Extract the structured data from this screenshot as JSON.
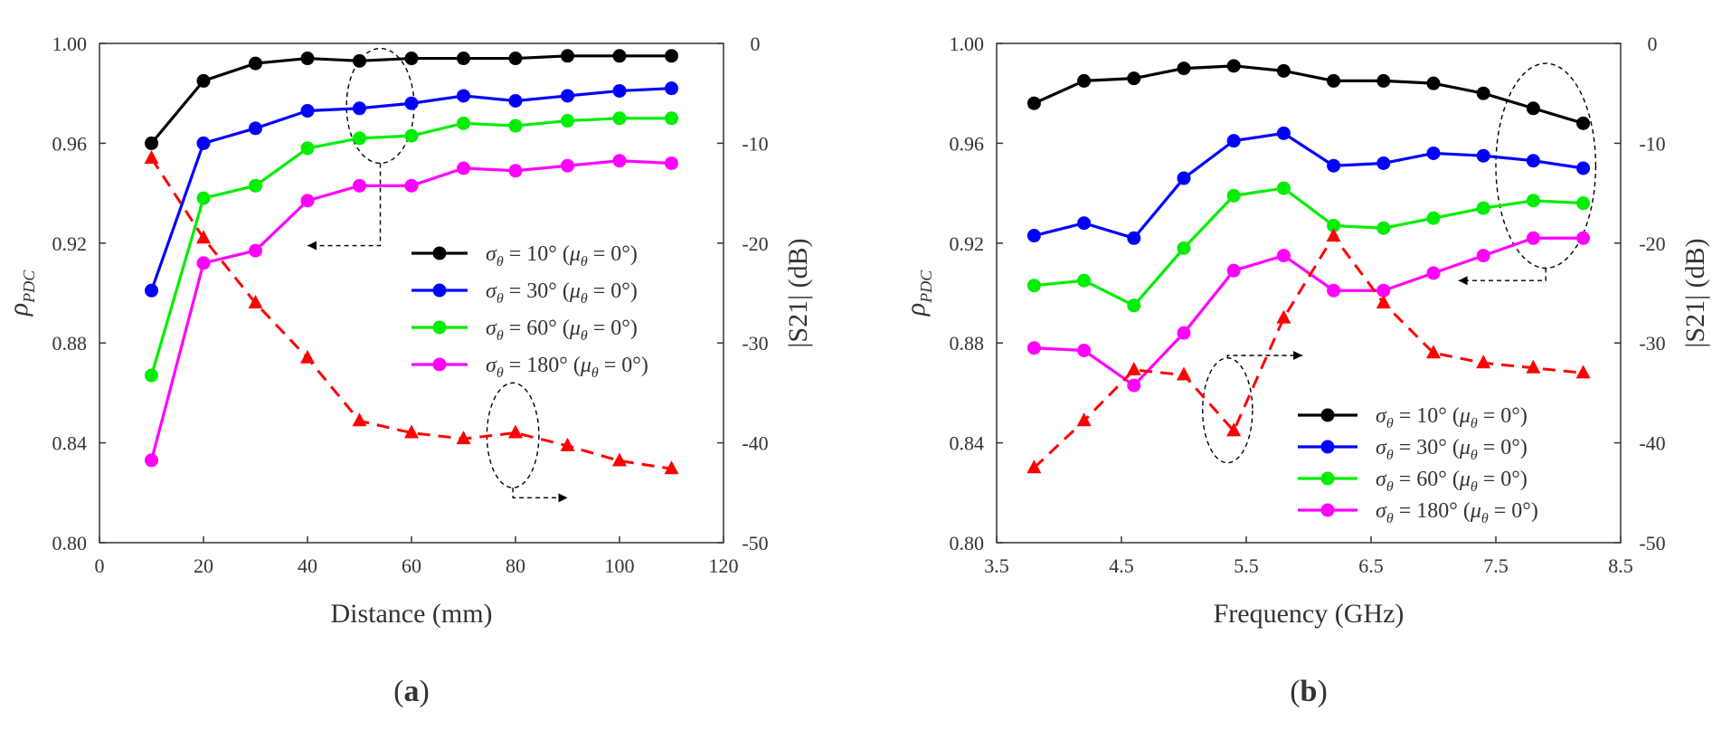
{
  "chart_data": [
    {
      "type": "line",
      "panel_label": "(a)",
      "panel_letter": "a",
      "xlabel": "Distance (mm)",
      "ylabel_left": "ρ",
      "ylabel_left_subscript": "PDC",
      "ylabel_right": "|S21| (dB)",
      "xlim": [
        0,
        120
      ],
      "ylim_left": [
        0.8,
        1.0
      ],
      "ylim_right": [
        -50,
        0
      ],
      "x_ticks": [
        "0",
        "20",
        "40",
        "60",
        "80",
        "100",
        "120"
      ],
      "y_ticks_left": [
        "0.80",
        "0.84",
        "0.88",
        "0.92",
        "0.96",
        "1.00"
      ],
      "y_ticks_right": [
        "-50",
        "-40",
        "-30",
        "-20",
        "-10",
        "0"
      ],
      "x": [
        10,
        20,
        30,
        40,
        50,
        60,
        70,
        80,
        90,
        100,
        110
      ],
      "legend_position": "right",
      "series": [
        {
          "name": "σθ = 10° (μθ = 0°)",
          "color": "#000000",
          "axis": "left",
          "values": [
            0.96,
            0.985,
            0.992,
            0.994,
            0.993,
            0.994,
            0.994,
            0.994,
            0.995,
            0.995,
            0.995
          ]
        },
        {
          "name": "σθ = 30° (μθ = 0°)",
          "color": "#0000ff",
          "axis": "left",
          "values": [
            0.901,
            0.96,
            0.966,
            0.973,
            0.974,
            0.976,
            0.979,
            0.977,
            0.979,
            0.981,
            0.982
          ]
        },
        {
          "name": "σθ = 60° (μθ = 0°)",
          "color": "#00ee00",
          "axis": "left",
          "values": [
            0.867,
            0.938,
            0.943,
            0.958,
            0.962,
            0.963,
            0.968,
            0.967,
            0.969,
            0.97,
            0.97
          ]
        },
        {
          "name": "σθ = 180° (μθ = 0°)",
          "color": "#ff00ff",
          "axis": "left",
          "values": [
            0.833,
            0.912,
            0.917,
            0.937,
            0.943,
            0.943,
            0.95,
            0.949,
            0.951,
            0.953,
            0.952
          ]
        },
        {
          "name": "|S21|",
          "color": "#ff0000",
          "axis": "right",
          "dashed": true,
          "marker": "triangle",
          "values": [
            -11.5,
            -19.5,
            -26,
            -31.5,
            -37.8,
            -39,
            -39.6,
            -39,
            -40.3,
            -41.8,
            -42.6
          ]
        }
      ],
      "legend": [
        {
          "sym": "σ",
          "sub": "θ",
          "rest": " = 10° (",
          "sym2": "μ",
          "sub2": "θ",
          "rest2": " = 0°)",
          "color": "#000000"
        },
        {
          "sym": "σ",
          "sub": "θ",
          "rest": " = 30° (",
          "sym2": "μ",
          "sub2": "θ",
          "rest2": " = 0°)",
          "color": "#0000ff"
        },
        {
          "sym": "σ",
          "sub": "θ",
          "rest": " = 60° (",
          "sym2": "μ",
          "sub2": "θ",
          "rest2": " = 0°)",
          "color": "#00ee00"
        },
        {
          "sym": "σ",
          "sub": "θ",
          "rest": " = 180° (",
          "sym2": "μ",
          "sub2": "θ",
          "rest2": " = 0°)",
          "color": "#ff00ff"
        }
      ],
      "annotations": [
        {
          "type": "ellipse",
          "cx": 54,
          "cy": 0.975,
          "rx": 6.5,
          "ry": 0.023,
          "arrow_to": [
            40,
            0.919
          ]
        },
        {
          "type": "ellipse",
          "cx": 79.5,
          "cy": 0.843,
          "rx": 5,
          "ry": 0.021,
          "arrow_to": [
            90,
            0.818
          ]
        }
      ]
    },
    {
      "type": "line",
      "panel_label": "(b)",
      "panel_letter": "b",
      "xlabel": "Frequency (GHz)",
      "ylabel_left": "ρ",
      "ylabel_left_subscript": "PDC",
      "ylabel_right": "|S21| (dB)",
      "xlim": [
        3.5,
        8.5
      ],
      "ylim_left": [
        0.8,
        1.0
      ],
      "ylim_right": [
        -50,
        0
      ],
      "x_ticks": [
        "3.5",
        "4.5",
        "5.5",
        "6.5",
        "7.5",
        "8.5"
      ],
      "y_ticks_left": [
        "0.80",
        "0.84",
        "0.88",
        "0.92",
        "0.96",
        "1.00"
      ],
      "y_ticks_right": [
        "-50",
        "-40",
        "-30",
        "-20",
        "-10",
        "0"
      ],
      "x": [
        3.8,
        4.2,
        4.6,
        5.0,
        5.4,
        5.8,
        6.2,
        6.6,
        7.0,
        7.4,
        7.8,
        8.2
      ],
      "legend_position": "bottom-right",
      "series": [
        {
          "name": "σθ = 10° (μθ = 0°)",
          "color": "#000000",
          "axis": "left",
          "values": [
            0.976,
            0.985,
            0.986,
            0.99,
            0.991,
            0.989,
            0.985,
            0.985,
            0.984,
            0.98,
            0.974,
            0.968
          ]
        },
        {
          "name": "σθ = 30° (μθ = 0°)",
          "color": "#0000ff",
          "axis": "left",
          "values": [
            0.923,
            0.928,
            0.922,
            0.946,
            0.961,
            0.964,
            0.951,
            0.952,
            0.956,
            0.955,
            0.953,
            0.95
          ]
        },
        {
          "name": "σθ = 60° (μθ = 0°)",
          "color": "#00ee00",
          "axis": "left",
          "values": [
            0.903,
            0.905,
            0.895,
            0.918,
            0.939,
            0.942,
            0.927,
            0.926,
            0.93,
            0.934,
            0.937,
            0.936
          ]
        },
        {
          "name": "σθ = 180° (μθ = 0°)",
          "color": "#ff00ff",
          "axis": "left",
          "values": [
            0.878,
            0.877,
            0.863,
            0.884,
            0.909,
            0.915,
            0.901,
            0.901,
            0.908,
            0.915,
            0.922,
            0.922
          ]
        },
        {
          "name": "|S21|",
          "color": "#ff0000",
          "axis": "right",
          "dashed": true,
          "marker": "triangle",
          "values": [
            -42.5,
            -37.8,
            -32.7,
            -33.2,
            -38.8,
            -27.5,
            -19.3,
            -26,
            -31,
            -32,
            -32.5,
            -33
          ]
        }
      ],
      "legend": [
        {
          "sym": "σ",
          "sub": "θ",
          "rest": " = 10° (",
          "sym2": "μ",
          "sub2": "θ",
          "rest2": " = 0°)",
          "color": "#000000"
        },
        {
          "sym": "σ",
          "sub": "θ",
          "rest": " = 30° (",
          "sym2": "μ",
          "sub2": "θ",
          "rest2": " = 0°)",
          "color": "#0000ff"
        },
        {
          "sym": "σ",
          "sub": "θ",
          "rest": " = 60° (",
          "sym2": "μ",
          "sub2": "θ",
          "rest2": " = 0°)",
          "color": "#00ee00"
        },
        {
          "sym": "σ",
          "sub": "θ",
          "rest": " = 180° (",
          "sym2": "μ",
          "sub2": "θ",
          "rest2": " = 0°)",
          "color": "#ff00ff"
        }
      ],
      "annotations": [
        {
          "type": "ellipse",
          "cx": 7.9,
          "cy": 0.951,
          "rx": 0.4,
          "ry": 0.041,
          "arrow_to": [
            7.2,
            0.905
          ]
        },
        {
          "type": "ellipse",
          "cx": 5.35,
          "cy": 0.853,
          "rx": 0.2,
          "ry": 0.021,
          "arrow_to": [
            5.95,
            0.875
          ]
        }
      ]
    }
  ]
}
